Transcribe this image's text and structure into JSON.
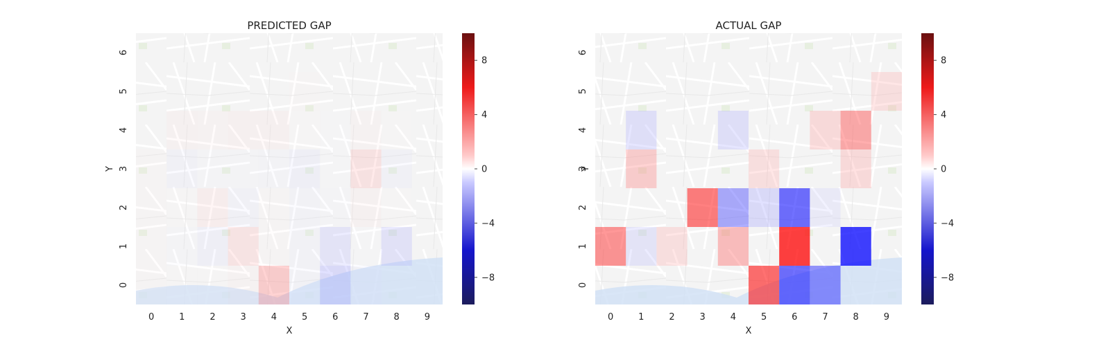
{
  "chart_data": [
    {
      "type": "heatmap",
      "title": "PREDICTED GAP",
      "xlabel": "X",
      "ylabel": "Y",
      "x_ticks": [
        "0",
        "1",
        "2",
        "3",
        "4",
        "5",
        "6",
        "7",
        "8",
        "9"
      ],
      "y_ticks": [
        "0",
        "1",
        "2",
        "3",
        "4",
        "5",
        "6"
      ],
      "colormap": "seismic",
      "vmin": -10,
      "vmax": 10,
      "colorbar_ticks": [
        -8,
        -4,
        0,
        4,
        8
      ],
      "colorbar_tick_labels": [
        "−8",
        "−4",
        "0",
        "4",
        "8"
      ],
      "background": "map",
      "cells": [
        {
          "x": 0,
          "y": 0,
          "v": 0.3
        },
        {
          "x": 1,
          "y": 0,
          "v": 0.2
        },
        {
          "x": 2,
          "y": 0,
          "v": 0.2
        },
        {
          "x": 3,
          "y": 0,
          "v": 0.5
        },
        {
          "x": 4,
          "y": 0,
          "v": 2.5
        },
        {
          "x": 5,
          "y": 0,
          "v": -0.5
        },
        {
          "x": 6,
          "y": 0,
          "v": -2.0
        },
        {
          "x": 7,
          "y": 0,
          "v": -0.6
        },
        {
          "x": 8,
          "y": 0,
          "v": 0.0
        },
        {
          "x": 9,
          "y": 0,
          "v": 0.0
        },
        {
          "x": 0,
          "y": 1,
          "v": 0.3
        },
        {
          "x": 1,
          "y": 1,
          "v": -0.3
        },
        {
          "x": 2,
          "y": 1,
          "v": -0.8
        },
        {
          "x": 3,
          "y": 1,
          "v": 1.5
        },
        {
          "x": 4,
          "y": 1,
          "v": 0.3
        },
        {
          "x": 5,
          "y": 1,
          "v": -0.5
        },
        {
          "x": 6,
          "y": 1,
          "v": -1.5
        },
        {
          "x": 7,
          "y": 1,
          "v": -0.2
        },
        {
          "x": 8,
          "y": 1,
          "v": -1.6
        },
        {
          "x": 9,
          "y": 1,
          "v": 0.0
        },
        {
          "x": 0,
          "y": 2,
          "v": 0.3
        },
        {
          "x": 1,
          "y": 2,
          "v": 0.2
        },
        {
          "x": 2,
          "y": 2,
          "v": 1.0
        },
        {
          "x": 3,
          "y": 2,
          "v": -0.6
        },
        {
          "x": 4,
          "y": 2,
          "v": 0.3
        },
        {
          "x": 5,
          "y": 2,
          "v": -0.5
        },
        {
          "x": 6,
          "y": 2,
          "v": -0.3
        },
        {
          "x": 7,
          "y": 2,
          "v": 0.6
        },
        {
          "x": 8,
          "y": 2,
          "v": 0.2
        },
        {
          "x": 9,
          "y": 2,
          "v": 0.0
        },
        {
          "x": 0,
          "y": 3,
          "v": 0.3
        },
        {
          "x": 1,
          "y": 3,
          "v": -0.6
        },
        {
          "x": 2,
          "y": 3,
          "v": -0.3
        },
        {
          "x": 3,
          "y": 3,
          "v": -0.3
        },
        {
          "x": 4,
          "y": 3,
          "v": -0.4
        },
        {
          "x": 5,
          "y": 3,
          "v": -0.8
        },
        {
          "x": 6,
          "y": 3,
          "v": -0.2
        },
        {
          "x": 7,
          "y": 3,
          "v": 1.6
        },
        {
          "x": 8,
          "y": 3,
          "v": -0.6
        },
        {
          "x": 9,
          "y": 3,
          "v": 0.0
        },
        {
          "x": 0,
          "y": 4,
          "v": 0.0
        },
        {
          "x": 1,
          "y": 4,
          "v": 0.6
        },
        {
          "x": 2,
          "y": 4,
          "v": 0.5
        },
        {
          "x": 3,
          "y": 4,
          "v": 0.7
        },
        {
          "x": 4,
          "y": 4,
          "v": 0.7
        },
        {
          "x": 5,
          "y": 4,
          "v": 0.1
        },
        {
          "x": 6,
          "y": 4,
          "v": -0.2
        },
        {
          "x": 7,
          "y": 4,
          "v": 0.5
        },
        {
          "x": 8,
          "y": 4,
          "v": 0.2
        },
        {
          "x": 9,
          "y": 4,
          "v": 0.0
        },
        {
          "x": 0,
          "y": 5,
          "v": 0.0
        },
        {
          "x": 1,
          "y": 5,
          "v": 0.0
        },
        {
          "x": 2,
          "y": 5,
          "v": 0.0
        },
        {
          "x": 3,
          "y": 5,
          "v": 0.0
        },
        {
          "x": 4,
          "y": 5,
          "v": 0.0
        },
        {
          "x": 5,
          "y": 5,
          "v": 0.3
        },
        {
          "x": 6,
          "y": 5,
          "v": 0.0
        },
        {
          "x": 7,
          "y": 5,
          "v": 0.0
        },
        {
          "x": 8,
          "y": 5,
          "v": 0.0
        },
        {
          "x": 9,
          "y": 5,
          "v": 0.0
        },
        {
          "x": 0,
          "y": 6,
          "v": 0.0
        },
        {
          "x": 1,
          "y": 6,
          "v": 0.0
        },
        {
          "x": 2,
          "y": 6,
          "v": 0.0
        },
        {
          "x": 3,
          "y": 6,
          "v": 0.0
        },
        {
          "x": 4,
          "y": 6,
          "v": 0.0
        },
        {
          "x": 5,
          "y": 6,
          "v": 0.0
        },
        {
          "x": 6,
          "y": 6,
          "v": 0.0
        },
        {
          "x": 7,
          "y": 6,
          "v": 0.0
        },
        {
          "x": 8,
          "y": 6,
          "v": 0.0
        },
        {
          "x": 9,
          "y": 6,
          "v": 0.0
        }
      ]
    },
    {
      "type": "heatmap",
      "title": "ACTUAL GAP",
      "xlabel": "X",
      "ylabel": "Y",
      "x_ticks": [
        "0",
        "1",
        "2",
        "3",
        "4",
        "5",
        "6",
        "7",
        "8",
        "9"
      ],
      "y_ticks": [
        "0",
        "1",
        "2",
        "3",
        "4",
        "5",
        "6"
      ],
      "colormap": "seismic",
      "vmin": -10,
      "vmax": 10,
      "colorbar_ticks": [
        -8,
        -4,
        0,
        4,
        8
      ],
      "colorbar_tick_labels": [
        "−8",
        "−4",
        "0",
        "4",
        "8"
      ],
      "background": "map",
      "cells": [
        {
          "x": 0,
          "y": 0,
          "v": 0.0
        },
        {
          "x": 1,
          "y": 0,
          "v": 0.0
        },
        {
          "x": 2,
          "y": 0,
          "v": 0.0
        },
        {
          "x": 3,
          "y": 0,
          "v": 0.0
        },
        {
          "x": 4,
          "y": 0,
          "v": 0.0
        },
        {
          "x": 5,
          "y": 0,
          "v": 5.0
        },
        {
          "x": 6,
          "y": 0,
          "v": -5.0
        },
        {
          "x": 7,
          "y": 0,
          "v": -4.0
        },
        {
          "x": 8,
          "y": 0,
          "v": 0.0
        },
        {
          "x": 9,
          "y": 0,
          "v": 0.0
        },
        {
          "x": 0,
          "y": 1,
          "v": 4.0
        },
        {
          "x": 1,
          "y": 1,
          "v": -1.5
        },
        {
          "x": 2,
          "y": 1,
          "v": 1.8
        },
        {
          "x": 3,
          "y": 1,
          "v": 0.0
        },
        {
          "x": 4,
          "y": 1,
          "v": 3.0
        },
        {
          "x": 5,
          "y": 1,
          "v": 0.0
        },
        {
          "x": 6,
          "y": 1,
          "v": 7.0
        },
        {
          "x": 7,
          "y": 1,
          "v": 0.0
        },
        {
          "x": 8,
          "y": 1,
          "v": -7.0
        },
        {
          "x": 9,
          "y": 1,
          "v": 0.0
        },
        {
          "x": 0,
          "y": 2,
          "v": 0.0
        },
        {
          "x": 1,
          "y": 2,
          "v": 0.0
        },
        {
          "x": 2,
          "y": 2,
          "v": 0.0
        },
        {
          "x": 3,
          "y": 2,
          "v": 4.5
        },
        {
          "x": 4,
          "y": 2,
          "v": -3.5
        },
        {
          "x": 5,
          "y": 2,
          "v": -2.0
        },
        {
          "x": 6,
          "y": 2,
          "v": -5.0
        },
        {
          "x": 7,
          "y": 2,
          "v": -1.2
        },
        {
          "x": 8,
          "y": 2,
          "v": 0.0
        },
        {
          "x": 9,
          "y": 2,
          "v": 0.0
        },
        {
          "x": 0,
          "y": 3,
          "v": 0.0
        },
        {
          "x": 1,
          "y": 3,
          "v": 2.5
        },
        {
          "x": 2,
          "y": 3,
          "v": 0.0
        },
        {
          "x": 3,
          "y": 3,
          "v": 0.0
        },
        {
          "x": 4,
          "y": 3,
          "v": 0.0
        },
        {
          "x": 5,
          "y": 3,
          "v": 1.8
        },
        {
          "x": 6,
          "y": 3,
          "v": 0.0
        },
        {
          "x": 7,
          "y": 3,
          "v": 0.0
        },
        {
          "x": 8,
          "y": 3,
          "v": 2.0
        },
        {
          "x": 9,
          "y": 3,
          "v": 0.0
        },
        {
          "x": 0,
          "y": 4,
          "v": 0.0
        },
        {
          "x": 1,
          "y": 4,
          "v": -1.8
        },
        {
          "x": 2,
          "y": 4,
          "v": 0.0
        },
        {
          "x": 3,
          "y": 4,
          "v": 0.0
        },
        {
          "x": 4,
          "y": 4,
          "v": -1.8
        },
        {
          "x": 5,
          "y": 4,
          "v": 0.0
        },
        {
          "x": 6,
          "y": 4,
          "v": 0.0
        },
        {
          "x": 7,
          "y": 4,
          "v": 2.0
        },
        {
          "x": 8,
          "y": 4,
          "v": 3.5
        },
        {
          "x": 9,
          "y": 4,
          "v": 0.0
        },
        {
          "x": 0,
          "y": 5,
          "v": 0.0
        },
        {
          "x": 1,
          "y": 5,
          "v": 0.0
        },
        {
          "x": 2,
          "y": 5,
          "v": 0.0
        },
        {
          "x": 3,
          "y": 5,
          "v": 0.0
        },
        {
          "x": 4,
          "y": 5,
          "v": 0.0
        },
        {
          "x": 5,
          "y": 5,
          "v": 0.0
        },
        {
          "x": 6,
          "y": 5,
          "v": 0.0
        },
        {
          "x": 7,
          "y": 5,
          "v": 0.0
        },
        {
          "x": 8,
          "y": 5,
          "v": 0.0
        },
        {
          "x": 9,
          "y": 5,
          "v": 1.8
        },
        {
          "x": 0,
          "y": 6,
          "v": 0.0
        },
        {
          "x": 1,
          "y": 6,
          "v": 0.0
        },
        {
          "x": 2,
          "y": 6,
          "v": 0.0
        },
        {
          "x": 3,
          "y": 6,
          "v": 0.0
        },
        {
          "x": 4,
          "y": 6,
          "v": 0.0
        },
        {
          "x": 5,
          "y": 6,
          "v": 0.0
        },
        {
          "x": 6,
          "y": 6,
          "v": 0.0
        },
        {
          "x": 7,
          "y": 6,
          "v": 0.0
        },
        {
          "x": 8,
          "y": 6,
          "v": 0.0
        },
        {
          "x": 9,
          "y": 6,
          "v": 0.0
        }
      ]
    }
  ]
}
